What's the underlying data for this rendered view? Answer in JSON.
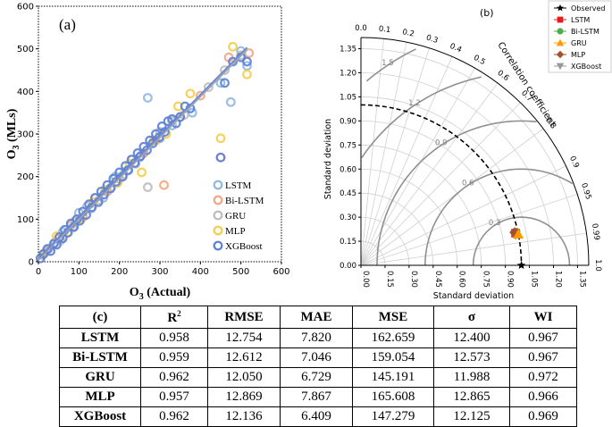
{
  "chart_data": [
    {
      "type": "scatter",
      "panel_label": "(a)",
      "xlabel": "O3 (Actual)",
      "ylabel": "O3 (MLs)",
      "xlim": [
        0,
        600
      ],
      "ylim": [
        0,
        600
      ],
      "xticks": [
        "0",
        "100",
        "200",
        "300",
        "400",
        "500",
        "600"
      ],
      "yticks": [
        "0",
        "100",
        "200",
        "300",
        "400",
        "500",
        "600"
      ],
      "legend_position": "lower-right",
      "series": [
        {
          "name": "LSTM",
          "color": "#8fb8e0",
          "slope": 0.958,
          "points": [
            [
              15,
              20
            ],
            [
              40,
              45
            ],
            [
              60,
              70
            ],
            [
              85,
              80
            ],
            [
              100,
              115
            ],
            [
              130,
              125
            ],
            [
              160,
              150
            ],
            [
              190,
              200
            ],
            [
              220,
              215
            ],
            [
              250,
              245
            ],
            [
              270,
              385
            ],
            [
              300,
              290
            ],
            [
              330,
              320
            ],
            [
              380,
              350
            ],
            [
              450,
              420
            ],
            [
              475,
              375
            ],
            [
              500,
              495
            ],
            [
              515,
              460
            ]
          ]
        },
        {
          "name": "Bi-LSTM",
          "color": "#f4a582",
          "slope": 0.959,
          "points": [
            [
              20,
              25
            ],
            [
              50,
              55
            ],
            [
              80,
              85
            ],
            [
              110,
              105
            ],
            [
              140,
              150
            ],
            [
              170,
              165
            ],
            [
              200,
              195
            ],
            [
              230,
              240
            ],
            [
              260,
              255
            ],
            [
              290,
              285
            ],
            [
              310,
              180
            ],
            [
              350,
              340
            ],
            [
              400,
              390
            ],
            [
              450,
              245
            ],
            [
              470,
              480
            ],
            [
              520,
              490
            ]
          ]
        },
        {
          "name": "GRU",
          "color": "#bdbdbd",
          "slope": 0.962,
          "points": [
            [
              25,
              30
            ],
            [
              55,
              50
            ],
            [
              90,
              95
            ],
            [
              120,
              130
            ],
            [
              150,
              145
            ],
            [
              180,
              175
            ],
            [
              210,
              205
            ],
            [
              240,
              230
            ],
            [
              270,
              175
            ],
            [
              300,
              305
            ],
            [
              330,
              330
            ],
            [
              360,
              345
            ],
            [
              420,
              410
            ],
            [
              460,
              450
            ],
            [
              500,
              485
            ]
          ]
        },
        {
          "name": "MLP",
          "color": "#f5cd4a",
          "slope": 0.957,
          "points": [
            [
              10,
              15
            ],
            [
              45,
              60
            ],
            [
              75,
              70
            ],
            [
              105,
              100
            ],
            [
              135,
              140
            ],
            [
              165,
              170
            ],
            [
              195,
              185
            ],
            [
              225,
              230
            ],
            [
              255,
              210
            ],
            [
              285,
              285
            ],
            [
              315,
              300
            ],
            [
              345,
              365
            ],
            [
              375,
              395
            ],
            [
              450,
              290
            ],
            [
              480,
              505
            ],
            [
              515,
              440
            ]
          ]
        },
        {
          "name": "XGBoost",
          "color": "#5b7fd6",
          "slope": 0.962,
          "points": [
            [
              5,
              8
            ],
            [
              12,
              18
            ],
            [
              22,
              30
            ],
            [
              30,
              25
            ],
            [
              38,
              42
            ],
            [
              45,
              40
            ],
            [
              52,
              58
            ],
            [
              60,
              55
            ],
            [
              65,
              75
            ],
            [
              72,
              68
            ],
            [
              80,
              90
            ],
            [
              88,
              82
            ],
            [
              95,
              100
            ],
            [
              102,
              96
            ],
            [
              110,
              118
            ],
            [
              118,
              110
            ],
            [
              125,
              135
            ],
            [
              132,
              128
            ],
            [
              140,
              150
            ],
            [
              148,
              140
            ],
            [
              155,
              165
            ],
            [
              162,
              158
            ],
            [
              170,
              180
            ],
            [
              178,
              172
            ],
            [
              185,
              195
            ],
            [
              192,
              188
            ],
            [
              200,
              210
            ],
            [
              208,
              200
            ],
            [
              215,
              225
            ],
            [
              222,
              215
            ],
            [
              230,
              240
            ],
            [
              238,
              232
            ],
            [
              245,
              255
            ],
            [
              252,
              248
            ],
            [
              260,
              270
            ],
            [
              268,
              262
            ],
            [
              275,
              285
            ],
            [
              282,
              278
            ],
            [
              290,
              300
            ],
            [
              298,
              292
            ],
            [
              305,
              318
            ],
            [
              312,
              305
            ],
            [
              320,
              330
            ],
            [
              330,
              335
            ],
            [
              340,
              325
            ],
            [
              350,
              340
            ],
            [
              362,
              365
            ],
            [
              375,
              360
            ],
            [
              450,
              245
            ],
            [
              460,
              420
            ],
            [
              480,
              470
            ],
            [
              500,
              480
            ],
            [
              515,
              470
            ]
          ]
        }
      ]
    },
    {
      "type": "taylor",
      "panel_label": "(b)",
      "xlabel": "Standard deviation",
      "ylabel": "Standard deviation",
      "arc_label": "Correlation coefficient",
      "std_ticks": [
        "0.00",
        "0.15",
        "0.30",
        "0.45",
        "0.60",
        "0.75",
        "0.90",
        "1.05",
        "1.20",
        "1.35"
      ],
      "std_ticks_x": [
        "0.00",
        "0.15",
        "0.30",
        "0.45",
        "0.60",
        "0.75",
        "0.90",
        "1.05",
        "1.20",
        "1.35"
      ],
      "corr_ticks": [
        "0.0",
        "0.1",
        "0.2",
        "0.3",
        "0.4",
        "0.5",
        "0.6",
        "0.7",
        "0.8",
        "0.9",
        "0.95",
        "0.99",
        "1.0"
      ],
      "rms_labels": [
        "0.3",
        "0.6",
        "0.9",
        "1.2",
        "1.5"
      ],
      "std_max": 1.42,
      "reference_std": 1.0,
      "legend_position": "top-right",
      "points": [
        {
          "name": "Observed",
          "std": 1.0,
          "corr": 1.0,
          "marker": "star",
          "color": "#000000"
        },
        {
          "name": "LSTM",
          "std": 0.984,
          "corr": 0.979,
          "marker": "square",
          "color": "#e41a1c"
        },
        {
          "name": "Bi-LSTM",
          "std": 0.985,
          "corr": 0.979,
          "marker": "circle",
          "color": "#4daf4a"
        },
        {
          "name": "GRU",
          "std": 1.0,
          "corr": 0.981,
          "marker": "triangle",
          "color": "#ff9900"
        },
        {
          "name": "MLP",
          "std": 0.98,
          "corr": 0.978,
          "marker": "diamond",
          "color": "#a0522d"
        },
        {
          "name": "XGBoost",
          "std": 0.982,
          "corr": 0.981,
          "marker": "triangle-down",
          "color": "#999999"
        }
      ]
    },
    {
      "type": "table",
      "panel_label": "(c)",
      "columns": [
        "R²",
        "RMSE",
        "MAE",
        "MSE",
        "σ",
        "WI"
      ],
      "rows": [
        {
          "model": "LSTM",
          "values": [
            "0.958",
            "12.754",
            "7.820",
            "162.659",
            "12.400",
            "0.967"
          ]
        },
        {
          "model": "Bi-LSTM",
          "values": [
            "0.959",
            "12.612",
            "7.046",
            "159.054",
            "12.573",
            "0.967"
          ]
        },
        {
          "model": "GRU",
          "values": [
            "0.962",
            "12.050",
            "6.729",
            "145.191",
            "11.988",
            "0.972"
          ]
        },
        {
          "model": "MLP",
          "values": [
            "0.957",
            "12.869",
            "7.867",
            "165.608",
            "12.865",
            "0.966"
          ]
        },
        {
          "model": "XGBoost",
          "values": [
            "0.962",
            "12.136",
            "6.409",
            "147.279",
            "12.125",
            "0.969"
          ]
        }
      ]
    }
  ]
}
